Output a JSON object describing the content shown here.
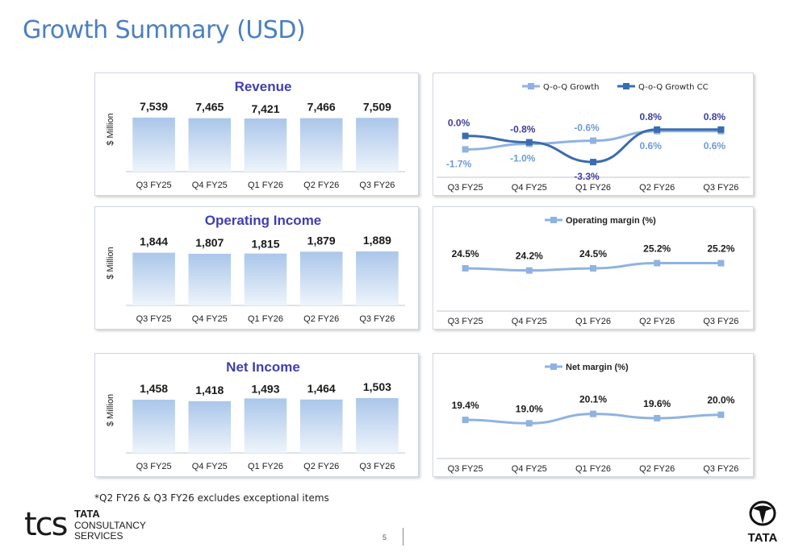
{
  "page": {
    "title": "Growth Summary (USD)",
    "footnote": "*Q2 FY26 & Q3 FY26 excludes exceptional items",
    "page_number": "5",
    "logo_tcs": {
      "mark": "tcs",
      "line1": "TATA",
      "line2": "CONSULTANCY",
      "line3": "SERVICES"
    },
    "logo_tata": {
      "text": "TATA"
    }
  },
  "colors": {
    "title": "#4a7fc1",
    "bar_top": "#aac6ea",
    "bar_bottom": "#eef4fb",
    "series_light": "#8fb3e0",
    "series_dark": "#3a6cb0",
    "chart_title": "#3f3faf",
    "label_dark": "#3d3d9e",
    "label_light": "#6e9ad6"
  },
  "chart_data": [
    {
      "id": "revenue",
      "type": "bar",
      "title": "Revenue",
      "ylabel": "$ Million",
      "categories": [
        "Q3 FY25",
        "Q4 FY25",
        "Q1 FY26",
        "Q2 FY26",
        "Q3 FY26"
      ],
      "values": [
        7539,
        7465,
        7421,
        7466,
        7509
      ],
      "value_labels": [
        "7,539",
        "7,465",
        "7,421",
        "7,466",
        "7,509"
      ],
      "ylim": [
        0,
        7539
      ]
    },
    {
      "id": "qoq-growth",
      "type": "line",
      "categories": [
        "Q3 FY25",
        "Q4 FY25",
        "Q1 FY26",
        "Q2 FY26",
        "Q3 FY26"
      ],
      "legend_position": "top",
      "series": [
        {
          "name": "Q-o-Q Growth",
          "values": [
            -1.7,
            -1.0,
            -0.6,
            0.6,
            0.6
          ],
          "labels": [
            "-1.7%",
            "-1.0%",
            "-0.6%",
            "0.6%",
            "0.6%"
          ]
        },
        {
          "name": "Q-o-Q Growth CC",
          "values": [
            0.0,
            -0.8,
            -3.3,
            0.8,
            0.8
          ],
          "labels": [
            "0.0%",
            "-0.8%",
            "-3.3%",
            "0.8%",
            "0.8%"
          ]
        }
      ],
      "ylim": [
        -4,
        2
      ]
    },
    {
      "id": "operating-income",
      "type": "bar",
      "title": "Operating Income",
      "ylabel": "$ Million",
      "categories": [
        "Q3 FY25",
        "Q4 FY25",
        "Q1 FY26",
        "Q2 FY26",
        "Q3 FY26"
      ],
      "values": [
        1844,
        1807,
        1815,
        1879,
        1889
      ],
      "value_labels": [
        "1,844",
        "1,807",
        "1,815",
        "1,879",
        "1,889"
      ],
      "ylim": [
        0,
        1889
      ]
    },
    {
      "id": "operating-margin",
      "type": "line",
      "categories": [
        "Q3 FY25",
        "Q4 FY25",
        "Q1 FY26",
        "Q2 FY26",
        "Q3 FY26"
      ],
      "legend_position": "top",
      "series": [
        {
          "name": "Operating margin (%)",
          "values": [
            24.5,
            24.2,
            24.5,
            25.2,
            25.2
          ],
          "labels": [
            "24.5%",
            "24.2%",
            "24.5%",
            "25.2%",
            "25.2%"
          ]
        }
      ],
      "ylim": [
        20,
        28
      ]
    },
    {
      "id": "net-income",
      "type": "bar",
      "title": "Net Income",
      "ylabel": "$ Million",
      "categories": [
        "Q3 FY25",
        "Q4 FY25",
        "Q1 FY26",
        "Q2 FY26",
        "Q3 FY26"
      ],
      "values": [
        1458,
        1418,
        1493,
        1464,
        1503
      ],
      "value_labels": [
        "1,458",
        "1,418",
        "1,493",
        "1,464",
        "1,503"
      ],
      "ylim": [
        0,
        1503
      ]
    },
    {
      "id": "net-margin",
      "type": "line",
      "categories": [
        "Q3 FY25",
        "Q4 FY25",
        "Q1 FY26",
        "Q2 FY26",
        "Q3 FY26"
      ],
      "legend_position": "top",
      "series": [
        {
          "name": "Net margin (%)",
          "values": [
            19.4,
            19.0,
            20.1,
            19.6,
            20.0
          ],
          "labels": [
            "19.4%",
            "19.0%",
            "20.1%",
            "19.6%",
            "20.0%"
          ]
        }
      ],
      "ylim": [
        16,
        23
      ]
    }
  ]
}
